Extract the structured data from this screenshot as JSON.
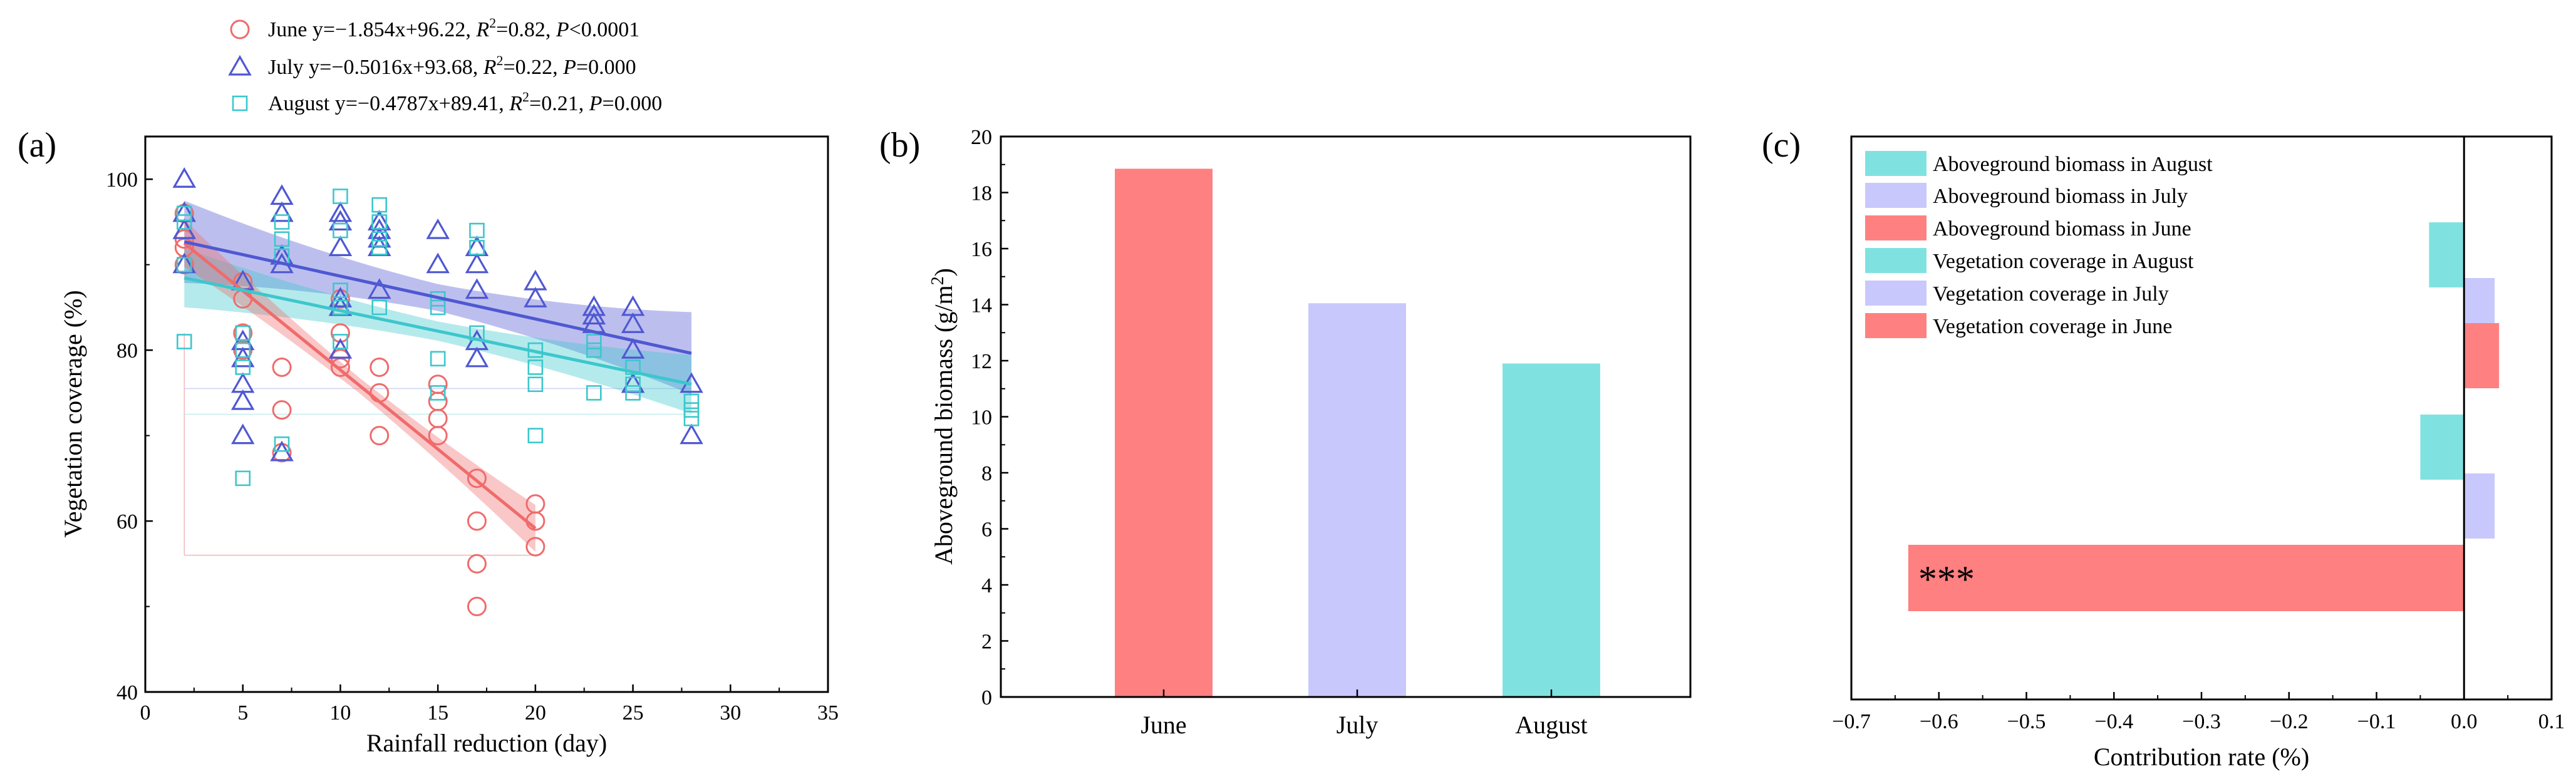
{
  "colors": {
    "june": "#f06b6b",
    "july": "#4f58d2",
    "august": "#3cc7cc",
    "june_bar": "#ff8080",
    "july_bar": "#c8c8fc",
    "august_bar": "#80e2e0"
  },
  "chart_data": [
    {
      "panel": "(a)",
      "type": "scatter",
      "xlabel": "Rainfall reduction (day)",
      "ylabel": "Vegetation coverage (%)",
      "xlim": [
        0,
        35
      ],
      "ylim": [
        40,
        105
      ],
      "xticks": [
        "0",
        "5",
        "10",
        "15",
        "20",
        "25",
        "30",
        "35"
      ],
      "yticks": [
        "40",
        "60",
        "80",
        "100"
      ],
      "legend": [
        {
          "month": "June",
          "pre": "y=−1.854x+96.22, ",
          "r2": "=0.82, ",
          "p": "<0.0001"
        },
        {
          "month": "July",
          "pre": "y=−0.5016x+93.68, ",
          "r2": "=0.22, ",
          "p": "=0.000"
        },
        {
          "month": "August",
          "pre": "y=−0.4787x+89.41, ",
          "r2": "=0.21, ",
          "p": "=0.000"
        }
      ],
      "series": [
        {
          "name": "June",
          "marker": "circle",
          "slope": -1.854,
          "intercept": 96.22,
          "x_range": [
            2,
            20
          ],
          "band": 2.0,
          "points": [
            [
              2,
              90
            ],
            [
              2,
              92
            ],
            [
              2,
              93
            ],
            [
              2,
              96
            ],
            [
              5,
              88
            ],
            [
              5,
              86
            ],
            [
              5,
              82
            ],
            [
              5,
              80
            ],
            [
              7,
              78
            ],
            [
              7,
              73
            ],
            [
              7,
              68
            ],
            [
              10,
              86
            ],
            [
              10,
              82
            ],
            [
              10,
              79
            ],
            [
              10,
              78
            ],
            [
              12,
              78
            ],
            [
              12,
              75
            ],
            [
              12,
              70
            ],
            [
              15,
              76
            ],
            [
              15,
              74
            ],
            [
              15,
              72
            ],
            [
              15,
              70
            ],
            [
              17,
              65
            ],
            [
              17,
              60
            ],
            [
              17,
              55
            ],
            [
              17,
              50
            ],
            [
              20,
              62
            ],
            [
              20,
              60
            ],
            [
              20,
              57
            ]
          ]
        },
        {
          "name": "July",
          "marker": "triangle",
          "slope": -0.5016,
          "intercept": 93.68,
          "x_range": [
            2,
            28
          ],
          "band": 3.5,
          "points": [
            [
              2,
              100
            ],
            [
              2,
              96
            ],
            [
              2,
              94
            ],
            [
              2,
              90
            ],
            [
              5,
              88
            ],
            [
              5,
              81
            ],
            [
              5,
              79
            ],
            [
              5,
              76
            ],
            [
              5,
              74
            ],
            [
              5,
              70
            ],
            [
              7,
              98
            ],
            [
              7,
              96
            ],
            [
              7,
              91
            ],
            [
              7,
              90
            ],
            [
              7,
              68
            ],
            [
              10,
              96
            ],
            [
              10,
              95
            ],
            [
              10,
              92
            ],
            [
              10,
              86
            ],
            [
              10,
              85
            ],
            [
              10,
              80
            ],
            [
              12,
              95
            ],
            [
              12,
              94
            ],
            [
              12,
              93
            ],
            [
              12,
              92
            ],
            [
              12,
              87
            ],
            [
              15,
              94
            ],
            [
              15,
              90
            ],
            [
              17,
              92
            ],
            [
              17,
              90
            ],
            [
              17,
              87
            ],
            [
              17,
              81
            ],
            [
              17,
              79
            ],
            [
              20,
              88
            ],
            [
              20,
              86
            ],
            [
              23,
              85
            ],
            [
              23,
              84
            ],
            [
              23,
              83
            ],
            [
              25,
              85
            ],
            [
              25,
              83
            ],
            [
              25,
              80
            ],
            [
              25,
              76
            ],
            [
              28,
              76
            ],
            [
              28,
              70
            ]
          ]
        },
        {
          "name": "August",
          "marker": "square",
          "slope": -0.4787,
          "intercept": 89.41,
          "x_range": [
            2,
            28
          ],
          "band": 2.5,
          "points": [
            [
              2,
              96
            ],
            [
              2,
              95
            ],
            [
              2,
              90
            ],
            [
              2,
              81
            ],
            [
              5,
              82
            ],
            [
              5,
              80
            ],
            [
              5,
              78
            ],
            [
              5,
              65
            ],
            [
              7,
              95
            ],
            [
              7,
              93
            ],
            [
              7,
              91
            ],
            [
              7,
              69
            ],
            [
              10,
              98
            ],
            [
              10,
              94
            ],
            [
              10,
              87
            ],
            [
              10,
              85
            ],
            [
              10,
              81
            ],
            [
              12,
              97
            ],
            [
              12,
              95
            ],
            [
              12,
              93
            ],
            [
              12,
              92
            ],
            [
              12,
              85
            ],
            [
              15,
              86
            ],
            [
              15,
              85
            ],
            [
              15,
              79
            ],
            [
              15,
              75
            ],
            [
              17,
              94
            ],
            [
              17,
              92
            ],
            [
              17,
              82
            ],
            [
              20,
              80
            ],
            [
              20,
              78
            ],
            [
              20,
              76
            ],
            [
              20,
              70
            ],
            [
              23,
              81
            ],
            [
              23,
              80
            ],
            [
              23,
              75
            ],
            [
              25,
              78
            ],
            [
              25,
              76
            ],
            [
              25,
              75
            ],
            [
              28,
              74
            ],
            [
              28,
              73
            ],
            [
              28,
              72
            ]
          ]
        }
      ]
    },
    {
      "panel": "(b)",
      "type": "bar",
      "categories": [
        "June",
        "July",
        "August"
      ],
      "values": [
        18.85,
        14.05,
        11.9
      ],
      "ylabel": "Aboveground biomass (g/m",
      "ylabel_sup": "2",
      "ylabel_end": ")",
      "ylim": [
        0,
        20
      ],
      "yticks": [
        "0",
        "2",
        "4",
        "6",
        "8",
        "10",
        "12",
        "14",
        "16",
        "18",
        "20"
      ]
    },
    {
      "panel": "(c)",
      "type": "bar",
      "orientation": "horizontal",
      "xlabel": "Contribution rate (%)",
      "xlim": [
        -0.7,
        0.1
      ],
      "xticks": [
        "−0.7",
        "−0.6",
        "−0.5",
        "−0.4",
        "−0.3",
        "−0.2",
        "−0.1",
        "0.0",
        "0.1"
      ],
      "legend": [
        "Aboveground biomass in August",
        "Aboveground biomass in July",
        "Aboveground biomass in June",
        "Vegetation coverage in August",
        "Vegetation coverage in July",
        "Vegetation coverage in June"
      ],
      "bars": [
        {
          "name": "Aboveground biomass in August",
          "value": -0.04,
          "annotation": ""
        },
        {
          "name": "Aboveground biomass in July",
          "value": 0.035,
          "annotation": ""
        },
        {
          "name": "Aboveground biomass in June",
          "value": 0.04,
          "annotation": ""
        },
        {
          "name": "Vegetation coverage in August",
          "value": -0.05,
          "annotation": ""
        },
        {
          "name": "Vegetation coverage in July",
          "value": 0.035,
          "annotation": ""
        },
        {
          "name": "Vegetation coverage in June",
          "value": -0.635,
          "annotation": "***"
        }
      ]
    }
  ]
}
